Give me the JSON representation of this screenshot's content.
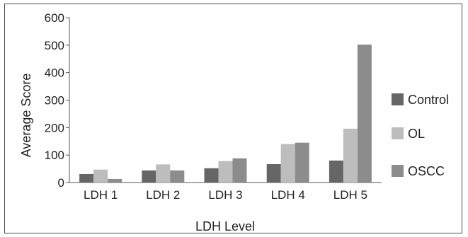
{
  "chart_data": {
    "type": "bar",
    "categories": [
      "LDH 1",
      "LDH 2",
      "LDH 3",
      "LDH 4",
      "LDH 5"
    ],
    "series": [
      {
        "name": "Control",
        "color": "#666666",
        "values": [
          31,
          44,
          52,
          67,
          80
        ]
      },
      {
        "name": "OL",
        "color": "#bdbdbd",
        "values": [
          47,
          66,
          78,
          140,
          196
        ]
      },
      {
        "name": "OSCC",
        "color": "#8c8c8c",
        "values": [
          13,
          44,
          88,
          145,
          502
        ]
      }
    ],
    "xlabel": "LDH Level",
    "ylabel": "Average Score",
    "ylim": [
      0,
      600
    ],
    "yticks": [
      0,
      100,
      200,
      300,
      400,
      500,
      600
    ],
    "grid": false,
    "legend_position": "right"
  }
}
